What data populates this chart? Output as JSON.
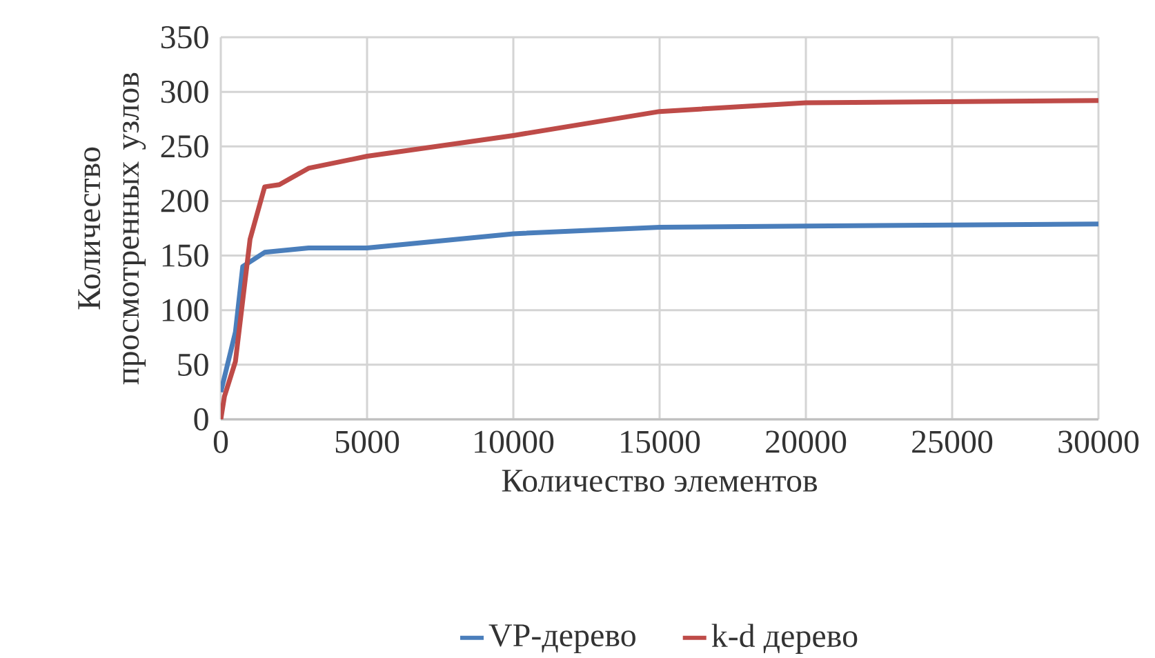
{
  "chart_data": {
    "type": "line",
    "xlabel": "Количество элементов",
    "ylabel": "Количество просмотренных узлов",
    "xlim": [
      0,
      30000
    ],
    "ylim": [
      0,
      350
    ],
    "xticks": [
      0,
      5000,
      10000,
      15000,
      20000,
      25000,
      30000
    ],
    "yticks": [
      0,
      50,
      100,
      150,
      200,
      250,
      300,
      350
    ],
    "grid": true,
    "legend": "bottom",
    "series": [
      {
        "name": "VP-дерево",
        "color": "#4a7ebb",
        "x": [
          0,
          500,
          750,
          1500,
          3000,
          5000,
          10000,
          15000,
          20000,
          30000
        ],
        "values": [
          25,
          80,
          140,
          153,
          157,
          157,
          170,
          176,
          177,
          179
        ]
      },
      {
        "name": "k-d дерево",
        "color": "#be4b48",
        "x": [
          0,
          125,
          500,
          1000,
          1500,
          2000,
          3000,
          5000,
          10000,
          15000,
          20000,
          30000
        ],
        "values": [
          0,
          21,
          53,
          165,
          213,
          215,
          230,
          241,
          260,
          282,
          290,
          292
        ]
      }
    ]
  }
}
